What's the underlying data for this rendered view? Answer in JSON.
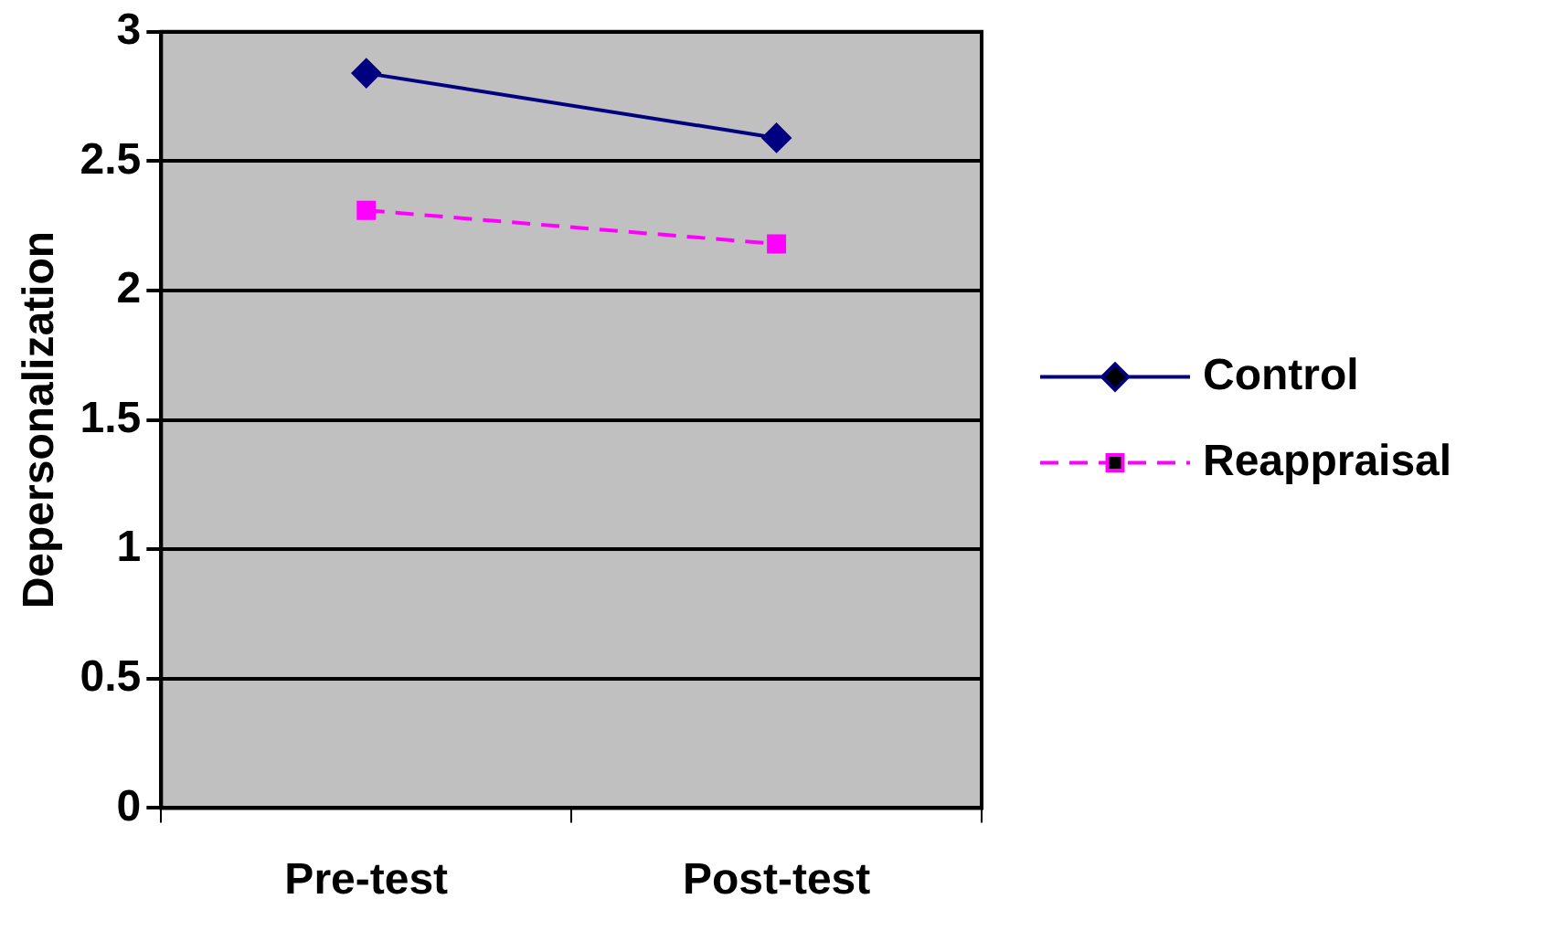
{
  "chart_data": {
    "type": "line",
    "ylabel": "Depersonalization",
    "categories": [
      "Pre-test",
      "Post-test"
    ],
    "series": [
      {
        "name": "Control",
        "color": "#000080",
        "values": [
          2.84,
          2.59
        ],
        "marker": "diamond",
        "line_style": "solid"
      },
      {
        "name": "Reappraisal",
        "color": "#ff00ff",
        "values": [
          2.31,
          2.18
        ],
        "marker": "square",
        "line_style": "dashed"
      }
    ],
    "ylim": [
      0,
      3
    ],
    "yticks": [
      0,
      0.5,
      1,
      1.5,
      2,
      2.5,
      3
    ],
    "grid": "y",
    "legend": "right"
  }
}
